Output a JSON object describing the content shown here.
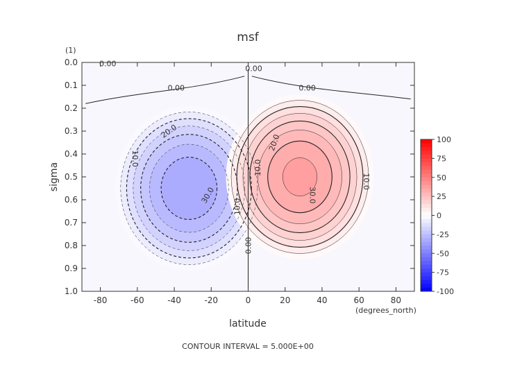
{
  "chart_data": {
    "type": "heatmap",
    "title": "msf",
    "xlabel": "latitude",
    "x_units": "(degrees_north)",
    "ylabel": "sigma",
    "y_note": "(1)",
    "footer": "CONTOUR INTERVAL = 5.000E+00",
    "xlim": [
      -90,
      90
    ],
    "ylim": [
      0.0,
      1.0
    ],
    "y_inverted": true,
    "grid": false,
    "x_ticks": [
      -80,
      -60,
      -40,
      -20,
      0,
      20,
      40,
      60,
      80
    ],
    "x_tick_labels": [
      "-80",
      "-60",
      "-40",
      "-20",
      "0",
      "20",
      "40",
      "60",
      "80"
    ],
    "y_ticks": [
      0.0,
      0.1,
      0.2,
      0.3,
      0.4,
      0.5,
      0.6,
      0.7,
      0.8,
      0.9,
      1.0
    ],
    "y_tick_labels": [
      "0.0",
      "0.1",
      "0.2",
      "0.3",
      "0.4",
      "0.5",
      "0.6",
      "0.7",
      "0.8",
      "0.9",
      "1.0"
    ],
    "contour_interval": 5.0,
    "cells": [
      {
        "name": "southern-cell",
        "center_lat": -32,
        "center_sigma": 0.55,
        "half_width_lat": 40,
        "half_height_sigma": 0.36,
        "peak": -35
      },
      {
        "name": "northern-cell",
        "center_lat": 28,
        "center_sigma": 0.5,
        "half_width_lat": 40,
        "half_height_sigma": 0.36,
        "peak": 37
      }
    ],
    "contour_labels": [
      {
        "text": "0.00",
        "lat": -76,
        "sigma": 0.005
      },
      {
        "text": "0.00",
        "lat": 3,
        "sigma": 0.025
      },
      {
        "text": "0.00",
        "lat": -39,
        "sigma": 0.11
      },
      {
        "text": "0.00",
        "lat": 32,
        "sigma": 0.11
      },
      {
        "text": "0.00",
        "lat": 0,
        "sigma": 0.8,
        "rotate": -90
      },
      {
        "text": "20.0",
        "lat": -43,
        "sigma": 0.3,
        "rotate": -35
      },
      {
        "text": "10.0",
        "lat": -61,
        "sigma": 0.42,
        "rotate": 90
      },
      {
        "text": "30.0",
        "lat": -22,
        "sigma": 0.58,
        "rotate": -60
      },
      {
        "text": "10.0",
        "lat": -6,
        "sigma": 0.63,
        "rotate": -90
      },
      {
        "text": "20.0",
        "lat": 14,
        "sigma": 0.35,
        "rotate": -70
      },
      {
        "text": "10.0",
        "lat": 5,
        "sigma": 0.46,
        "rotate": -90
      },
      {
        "text": "30.0",
        "lat": 35,
        "sigma": 0.58,
        "rotate": 90
      },
      {
        "text": "10.0",
        "lat": 64,
        "sigma": 0.52,
        "rotate": 90
      }
    ],
    "colorbar": {
      "ticks": [
        100,
        75,
        50,
        25,
        0,
        -25,
        -50,
        -75,
        -100
      ],
      "tick_labels": [
        "100",
        "75",
        "50",
        "25",
        "0",
        "-25",
        "-50",
        "-75",
        "-100"
      ],
      "min": -100,
      "max": 100,
      "positive_color": "#ff0000",
      "negative_color": "#0000ff",
      "zero_color": "#ffffff"
    }
  }
}
